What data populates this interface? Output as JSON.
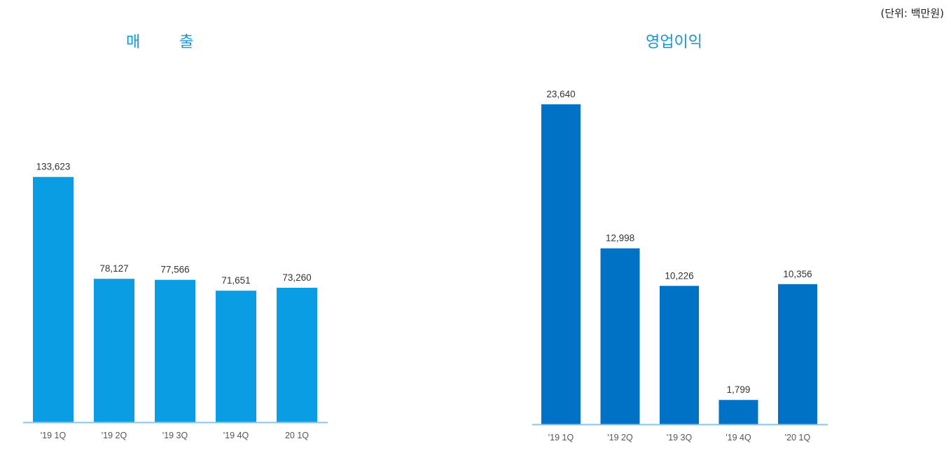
{
  "unit_label": "(단위: 백만원)",
  "colors": {
    "sales_bar": "#0a9de3",
    "op_bar": "#0072c5",
    "axis": "#8ec3e8"
  },
  "chart_data": [
    {
      "type": "bar",
      "title": "매        출",
      "categories": [
        "'19 1Q",
        "'19 2Q",
        "'19 3Q",
        "'19 4Q",
        "20 1Q"
      ],
      "values": [
        133623,
        78127,
        77566,
        71651,
        73260
      ],
      "value_labels": [
        "133,623",
        "78,127",
        "77,566",
        "71,651",
        "73,260"
      ],
      "ylim": [
        0,
        140000
      ]
    },
    {
      "type": "bar",
      "title": "영업이익",
      "categories": [
        "'19 1Q",
        "'19 2Q",
        "'19 3Q",
        "'19 4Q",
        "'20 1Q"
      ],
      "values": [
        23640,
        12998,
        10226,
        1799,
        10356
      ],
      "value_labels": [
        "23,640",
        "12,998",
        "10,226",
        "1,799",
        "10,356"
      ],
      "ylim": [
        0,
        24000
      ]
    }
  ]
}
